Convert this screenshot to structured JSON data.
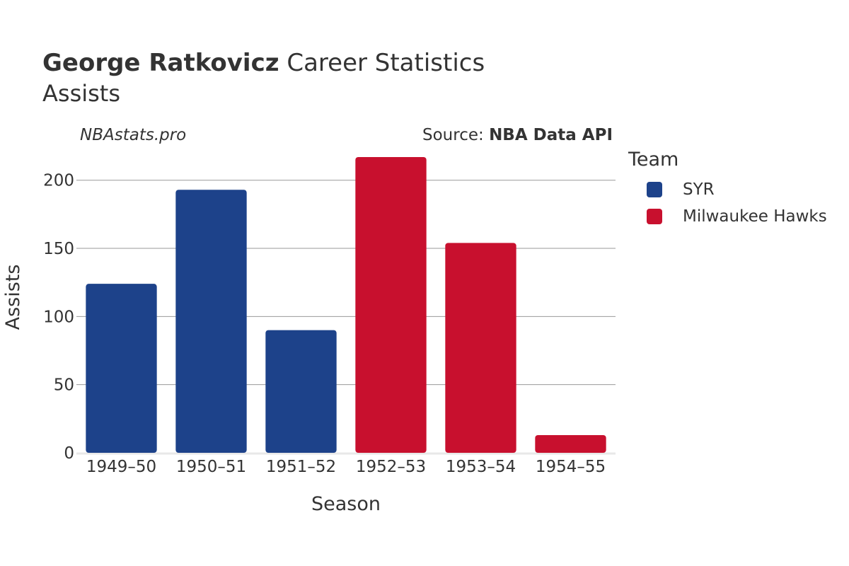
{
  "header": {
    "title_bold": "George Ratkovicz",
    "title_rest": " Career Statistics",
    "subtitle": "Assists",
    "watermark": "NBAstats.pro",
    "source_prefix": "Source: ",
    "source_name": "NBA Data API"
  },
  "legend": {
    "title": "Team",
    "items": [
      {
        "label": "SYR",
        "color": "#1d428a"
      },
      {
        "label": "Milwaukee Hawks",
        "color": "#c8102e"
      }
    ]
  },
  "chart_data": {
    "type": "bar",
    "xlabel": "Season",
    "ylabel": "Assists",
    "ylim": [
      0,
      217
    ],
    "yticks": [
      0,
      50,
      100,
      150,
      200
    ],
    "grid": true,
    "legend_placement": "right",
    "categories": [
      "1949–50",
      "1950–51",
      "1951–52",
      "1952–53",
      "1953–54",
      "1954–55"
    ],
    "values": [
      124,
      193,
      90,
      217,
      154,
      13
    ],
    "teams": [
      "SYR",
      "SYR",
      "SYR",
      "Milwaukee Hawks",
      "Milwaukee Hawks",
      "Milwaukee Hawks"
    ],
    "series": [
      {
        "name": "SYR",
        "color": "#1d428a",
        "values": [
          124,
          193,
          90,
          null,
          null,
          null
        ]
      },
      {
        "name": "Milwaukee Hawks",
        "color": "#c8102e",
        "values": [
          null,
          null,
          null,
          217,
          154,
          13
        ]
      }
    ]
  }
}
